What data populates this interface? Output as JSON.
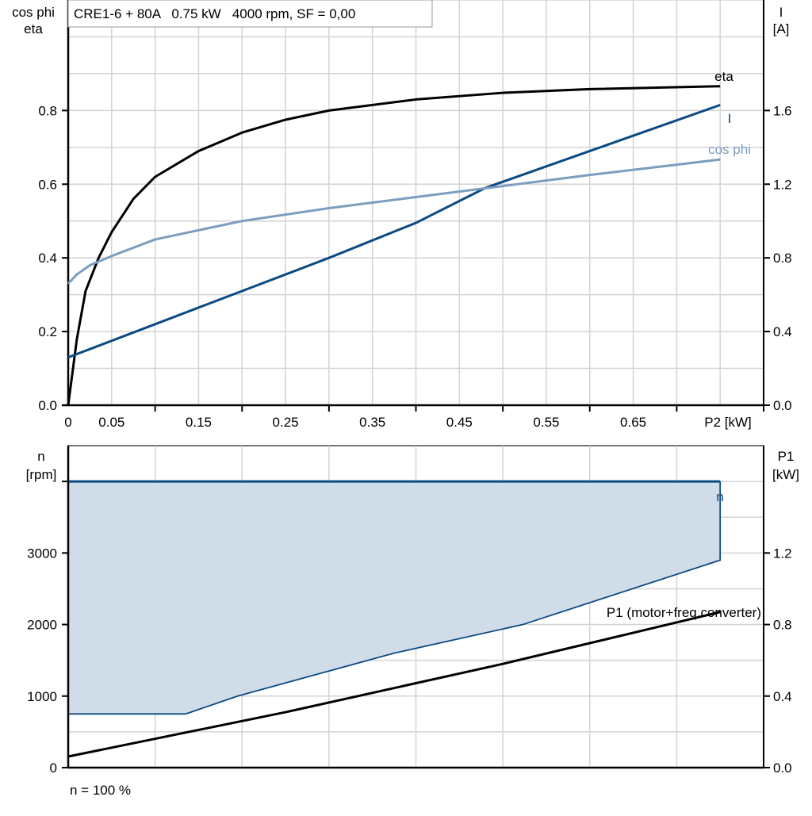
{
  "colors": {
    "eta": "#000000",
    "I": "#0b4a82",
    "cosphi": "#7b9dbf",
    "n_line": "#0b4a82",
    "n_fill": "#d0dce8",
    "P1": "#000000",
    "grid": "#d3d3d3"
  },
  "chart_data": [
    {
      "type": "line",
      "title": "CRE1-6 + 80A   0.75 kW   4000 rpm, SF = 0,00",
      "xlabel": "P2 [kW]",
      "ylabel_left": [
        "cos phi",
        "eta"
      ],
      "ylabel_right": [
        "I",
        "[A]"
      ],
      "xlim": [
        0,
        0.8
      ],
      "ylim_left": [
        0,
        1.1
      ],
      "ylim_right": [
        0,
        2.2
      ],
      "x_ticks": [
        "0",
        "0.05",
        "0.15",
        "0.25",
        "0.35",
        "0.45",
        "0.55",
        "0.65"
      ],
      "x_tick_values": [
        0,
        0.05,
        0.15,
        0.25,
        0.35,
        0.45,
        0.55,
        0.65
      ],
      "y_ticks_left": [
        "0.0",
        "0.2",
        "0.4",
        "0.6",
        "0.8"
      ],
      "y_tick_values_left": [
        0,
        0.2,
        0.4,
        0.6,
        0.8
      ],
      "y_ticks_right": [
        "0.0",
        "0.4",
        "0.8",
        "1.2",
        "1.6"
      ],
      "y_tick_values_right": [
        0,
        0.4,
        0.8,
        1.2,
        1.6
      ],
      "grid": true,
      "series": [
        {
          "name": "eta",
          "axis": "left",
          "x": [
            0,
            0.01,
            0.02,
            0.035,
            0.05,
            0.075,
            0.1,
            0.15,
            0.2,
            0.25,
            0.3,
            0.4,
            0.5,
            0.6,
            0.75
          ],
          "y": [
            0,
            0.18,
            0.31,
            0.4,
            0.47,
            0.56,
            0.62,
            0.69,
            0.74,
            0.775,
            0.8,
            0.83,
            0.848,
            0.858,
            0.866
          ]
        },
        {
          "name": "I",
          "axis": "right",
          "x": [
            0,
            0.1,
            0.2,
            0.3,
            0.4,
            0.48,
            0.6,
            0.75
          ],
          "y": [
            0.26,
            0.44,
            0.62,
            0.8,
            0.99,
            1.18,
            1.38,
            1.63
          ]
        },
        {
          "name": "cos phi",
          "axis": "left",
          "x": [
            0,
            0.01,
            0.025,
            0.05,
            0.1,
            0.15,
            0.2,
            0.3,
            0.4,
            0.5,
            0.6,
            0.75
          ],
          "y": [
            0.33,
            0.355,
            0.38,
            0.405,
            0.45,
            0.475,
            0.5,
            0.535,
            0.565,
            0.595,
            0.625,
            0.667
          ]
        }
      ]
    },
    {
      "type": "area",
      "xlim": [
        0,
        0.8
      ],
      "ylabel_left": [
        "n",
        "[rpm]"
      ],
      "ylabel_right": [
        "P1",
        "[kW]"
      ],
      "ylim_left": [
        0,
        4500
      ],
      "ylim_right": [
        0,
        1.8
      ],
      "y_ticks_left": [
        "0",
        "1000",
        "2000",
        "3000"
      ],
      "y_tick_values_left": [
        0,
        1000,
        2000,
        3000
      ],
      "y_ticks_right": [
        "0.0",
        "0.4",
        "0.8",
        "1.2"
      ],
      "y_tick_values_right": [
        0,
        0.4,
        0.8,
        1.2
      ],
      "grid": true,
      "footer": "n = 100 %",
      "n_area": {
        "name": "n",
        "upper": {
          "x": [
            0,
            0.75
          ],
          "y": [
            4000,
            4000
          ]
        },
        "lower": {
          "x": [
            0,
            0.135,
            0.195,
            0.375,
            0.523,
            0.75
          ],
          "y": [
            750,
            750,
            1000,
            1600,
            2000,
            2900
          ]
        }
      },
      "P1": {
        "name": "P1 (motor+freq.converter)",
        "x": [
          0,
          0.25,
          0.5,
          0.75
        ],
        "y": [
          0.062,
          0.31,
          0.58,
          0.87
        ]
      }
    }
  ]
}
